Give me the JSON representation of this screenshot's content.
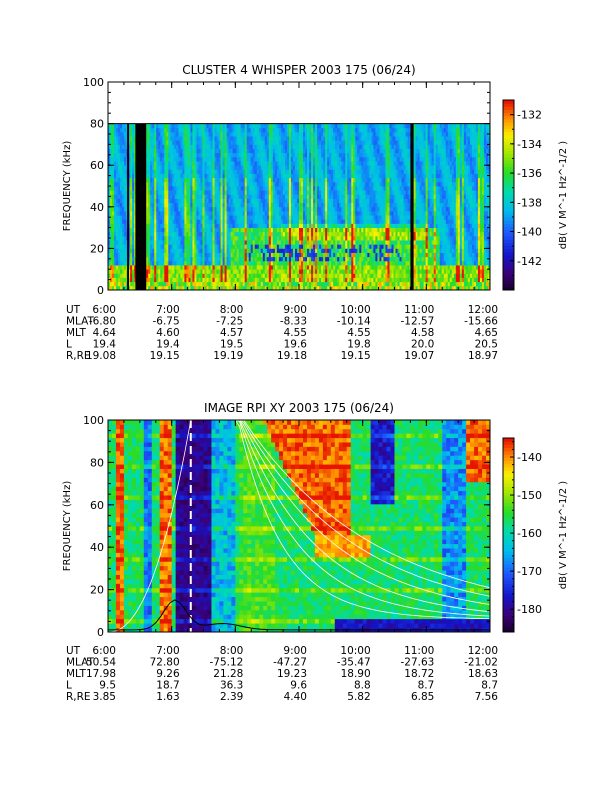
{
  "chart_data": [
    {
      "type": "heatmap",
      "title": "CLUSTER 4 WHISPER 2003 175 (06/24)",
      "ylabel": "FREQUENCY (kHz)",
      "ylim": [
        0,
        100
      ],
      "yticks": [
        "0",
        "20",
        "40",
        "60",
        "80",
        "100"
      ],
      "x_ticks": [
        "6:00",
        "7:00",
        "8:00",
        "9:00",
        "10:00",
        "11:00",
        "12:00"
      ],
      "data_fmax_khz": 80,
      "gaps_hours": [
        [
          6.3,
          6.33
        ],
        [
          6.43,
          6.6
        ],
        [
          10.75,
          10.8
        ]
      ],
      "colorbar": {
        "label": "dB( V M^-1 Hz^-1/2 )",
        "range": [
          -144,
          -131
        ],
        "ticks": [
          "-132",
          "-134",
          "-136",
          "-138",
          "-140",
          "-142"
        ]
      },
      "ephemeris": {
        "labels": [
          "UT",
          "MLAT",
          "MLT",
          "L",
          "R,RE"
        ],
        "rows": [
          [
            "6:00",
            "7:00",
            "8:00",
            "9:00",
            "10:00",
            "11:00",
            "12:00"
          ],
          [
            "-6.80",
            "-6.75",
            "-7.25",
            "-8.33",
            "-10.14",
            "-12.57",
            "-15.66"
          ],
          [
            "4.64",
            "4.60",
            "4.57",
            "4.55",
            "4.55",
            "4.58",
            "4.65"
          ],
          [
            "19.4",
            "19.4",
            "19.5",
            "19.6",
            "19.8",
            "20.0",
            "20.5"
          ],
          [
            "19.08",
            "19.15",
            "19.19",
            "19.18",
            "19.15",
            "19.07",
            "18.97"
          ]
        ]
      }
    },
    {
      "type": "heatmap",
      "title": "IMAGE RPI XY 2003 175 (06/24)",
      "ylabel": "FREQUENCY (kHz)",
      "ylim": [
        0,
        100
      ],
      "yticks": [
        "0",
        "20",
        "40",
        "60",
        "80",
        "100"
      ],
      "x_ticks": [
        "6:00",
        "7:00",
        "8:00",
        "9:00",
        "10:00",
        "11:00",
        "12:00"
      ],
      "marker_hour": 7.3,
      "colorbar": {
        "label": "dB( V M^-1 Hz^-1/2 )",
        "range": [
          -186,
          -135
        ],
        "ticks": [
          "-140",
          "-150",
          "-160",
          "-170",
          "-180"
        ]
      },
      "ephemeris": {
        "labels": [
          "UT",
          "MLAT",
          "MLT",
          "L",
          "R,RE"
        ],
        "rows": [
          [
            "6:00",
            "7:00",
            "8:00",
            "9:00",
            "10:00",
            "11:00",
            "12:00"
          ],
          [
            "50.54",
            "72.80",
            "-75.12",
            "-47.27",
            "-35.47",
            "-27.63",
            "-21.02"
          ],
          [
            "17.98",
            "9.26",
            "21.28",
            "19.23",
            "18.90",
            "18.72",
            "18.63"
          ],
          [
            "9.5",
            "18.7",
            "36.3",
            "9.6",
            "8.8",
            "8.7",
            "8.7"
          ],
          [
            "3.85",
            "1.63",
            "2.39",
            "4.40",
            "5.82",
            "6.85",
            "7.56"
          ]
        ]
      }
    }
  ]
}
